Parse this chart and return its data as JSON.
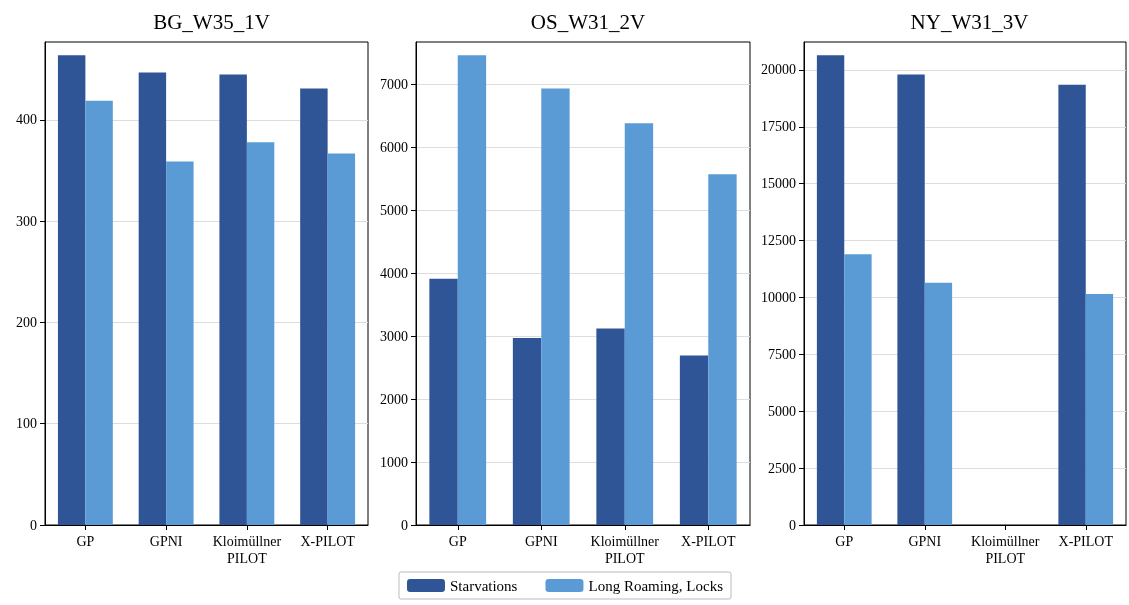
{
  "chart_data": [
    {
      "type": "bar",
      "title": "BG_W35_1V",
      "categories": [
        "GP",
        "GPNI",
        "Kloimüllner\nPILOT",
        "X-PILOT"
      ],
      "series": [
        {
          "color": "#2f5597",
          "values": [
            464,
            447,
            445,
            431
          ]
        },
        {
          "color": "#5b9bd5",
          "values": [
            419,
            359,
            378,
            367
          ]
        }
      ],
      "ylim": [
        0,
        477
      ],
      "yticks": [
        0,
        100,
        200,
        300,
        400
      ],
      "grid": "y"
    },
    {
      "type": "bar",
      "title": "OS_W31_2V",
      "categories": [
        "GP",
        "GPNI",
        "Kloimüllner\nPILOT",
        "X-PILOT"
      ],
      "series": [
        {
          "name": "Starvations",
          "color": "#2f5597",
          "values": [
            3910,
            2970,
            3120,
            2690
          ]
        },
        {
          "name": "Long Roaming, Locks",
          "color": "#5b9bd5",
          "values": [
            7460,
            6930,
            6380,
            5570
          ]
        }
      ],
      "ylim": [
        0,
        7670
      ],
      "yticks": [
        0,
        1000,
        2000,
        3000,
        4000,
        5000,
        6000,
        7000
      ],
      "grid": "y",
      "legend": "bottom"
    },
    {
      "type": "bar",
      "title": "NY_W31_3V",
      "categories": [
        "GP",
        "GPNI",
        "Kloimüllner\nPILOT",
        "X-PILOT"
      ],
      "series": [
        {
          "color": "#2f5597",
          "values": [
            20650,
            19800,
            null,
            19350
          ]
        },
        {
          "color": "#5b9bd5",
          "values": [
            11900,
            10650,
            null,
            10150
          ]
        }
      ],
      "ylim": [
        0,
        21230
      ],
      "yticks": [
        0,
        2500,
        5000,
        7500,
        10000,
        12500,
        15000,
        17500,
        20000
      ],
      "grid": "y"
    }
  ]
}
